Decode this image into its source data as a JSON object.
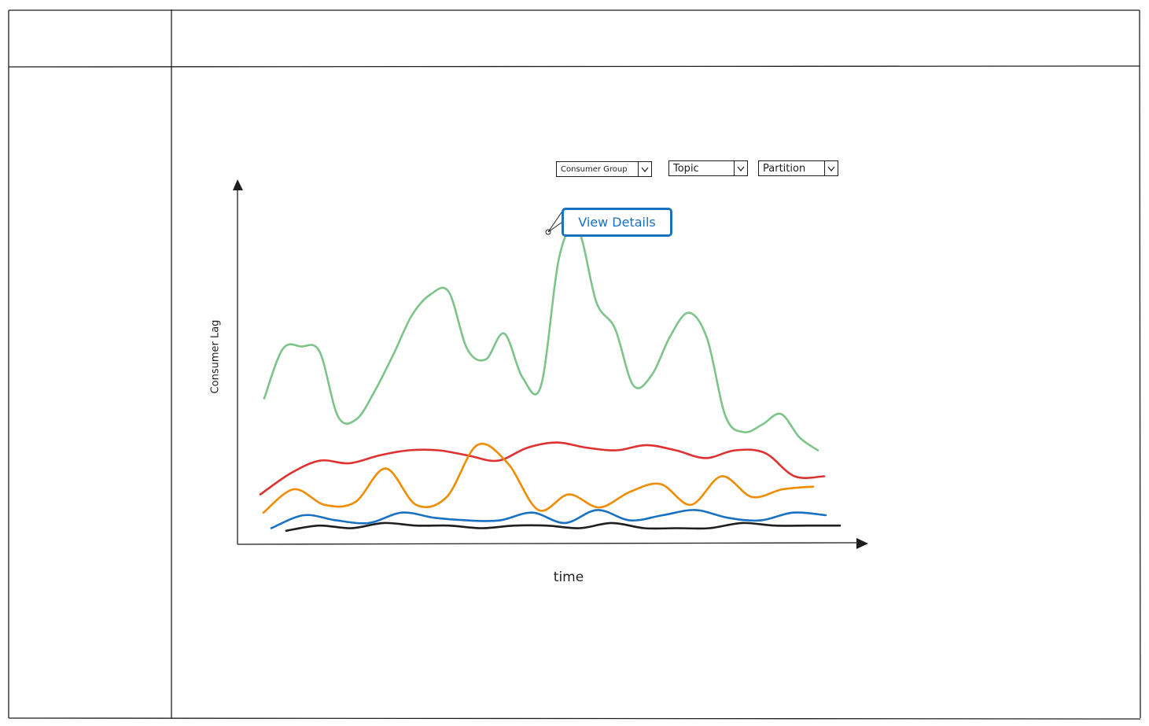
{
  "filters": {
    "consumer_group": "Consumer Group",
    "topic": "Topic",
    "partition": "Partition"
  },
  "tooltip": {
    "button_label": "View Details"
  },
  "chart_data": {
    "type": "line",
    "xlabel": "time",
    "ylabel": "Consumer Lag",
    "grid": false,
    "series": [
      {
        "color": "#7cc48a",
        "values": [
          55,
          74,
          75,
          73,
          48,
          47,
          58,
          72,
          87,
          95,
          96,
          74,
          70,
          80,
          63,
          60,
          110,
          120,
          92,
          82,
          60,
          64,
          79,
          88,
          78,
          48,
          42,
          45,
          49,
          40,
          35
        ]
      },
      {
        "color": "#e03131",
        "values": [
          18,
          26,
          31,
          30,
          33,
          35,
          35,
          33,
          31,
          36,
          38,
          36,
          35,
          37,
          35,
          32,
          35,
          34,
          25,
          25
        ]
      },
      {
        "color": "#f08c00",
        "values": [
          11,
          20,
          14,
          15,
          28,
          14,
          17,
          37,
          30,
          12,
          18,
          13,
          19,
          22,
          14,
          25,
          17,
          20,
          21
        ]
      },
      {
        "color": "#1971c2",
        "values": [
          5,
          10,
          8,
          7,
          11,
          9,
          8,
          8,
          11,
          7,
          12,
          8,
          10,
          12,
          9,
          8,
          11,
          10
        ]
      },
      {
        "color": "#1e1e1e",
        "values": [
          4,
          6,
          5,
          7,
          6,
          6,
          5,
          6,
          6,
          5,
          7,
          5,
          5,
          5,
          7,
          6,
          6,
          6
        ]
      }
    ],
    "highlight": {
      "series": 0,
      "index": 16
    }
  }
}
